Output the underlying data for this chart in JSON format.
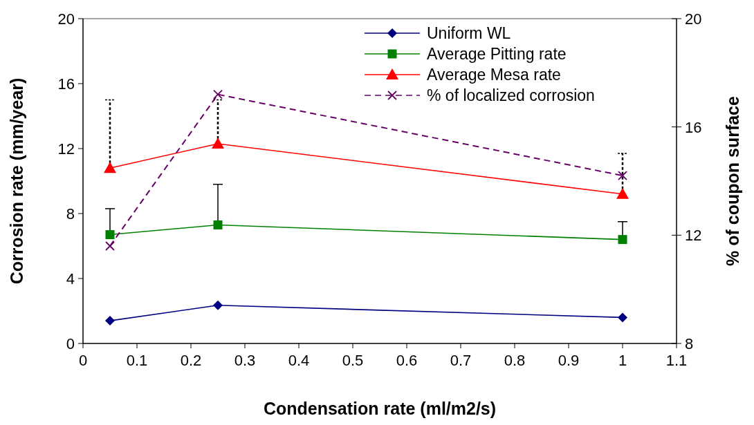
{
  "chart_data": {
    "type": "line",
    "xlabel": "Condensation rate (ml/m2/s)",
    "ylabel": "Corrosion rate (mm/year)",
    "y2label": "% of coupon surface",
    "x": [
      0.05,
      0.25,
      1
    ],
    "series": [
      {
        "name": "Uniform WL",
        "color": "#000080",
        "values": [
          1.4,
          2.35,
          1.6
        ],
        "marker": "diamond",
        "line_style": "solid"
      },
      {
        "name": "Average Pitting rate",
        "color": "#008000",
        "values": [
          6.7,
          7.3,
          6.4
        ],
        "marker": "square",
        "line_style": "solid",
        "errors": [
          [
            6.7,
            8.3
          ],
          [
            7.3,
            9.8
          ],
          [
            6.4,
            7.5
          ]
        ]
      },
      {
        "name": "Average Mesa rate",
        "color": "#ff0000",
        "values": [
          10.8,
          12.3,
          9.2
        ],
        "marker": "triangle",
        "line_style": "solid",
        "errors": [
          [
            10.8,
            15.0
          ],
          [
            12.3,
            15.0
          ],
          [
            9.2,
            11.7
          ]
        ]
      },
      {
        "name": "% of localized corrosion",
        "color": "#660066",
        "values": [
          11.6,
          17.2,
          14.2
        ],
        "marker": "cross",
        "line_style": "dashed",
        "axis": "y2"
      }
    ],
    "xlim": [
      0,
      1.1
    ],
    "xticks": [
      0,
      0.1,
      0.2,
      0.3,
      0.4,
      0.5,
      0.6,
      0.7,
      0.8,
      0.9,
      1,
      1.1
    ],
    "ylim": [
      0,
      20
    ],
    "yticks": [
      0,
      4,
      8,
      12,
      16,
      20
    ],
    "y2lim": [
      8,
      20
    ],
    "y2ticks": [
      8,
      12,
      16,
      20
    ],
    "grid": false,
    "legend": "top right"
  }
}
